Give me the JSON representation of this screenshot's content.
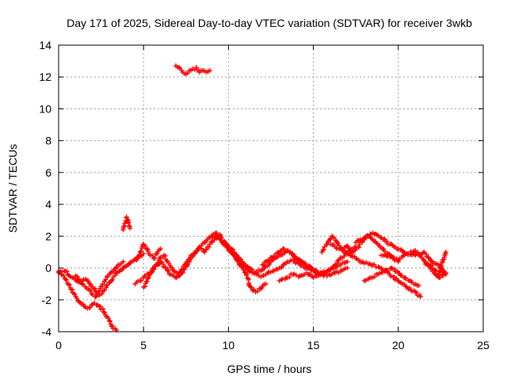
{
  "chart_data": {
    "type": "scatter",
    "title": "Day 171 of 2025, Sidereal Day-to-day VTEC variation (SDTVAR) for receiver 3wkb",
    "xlabel": "GPS time / hours",
    "ylabel": "SDTVAR / TECUs",
    "xlim": [
      0,
      25
    ],
    "ylim": [
      -4,
      14
    ],
    "xticks": [
      0,
      5,
      10,
      15,
      20,
      25
    ],
    "yticks": [
      -4,
      -2,
      0,
      2,
      4,
      6,
      8,
      10,
      12,
      14
    ],
    "grid": true,
    "marker": "+",
    "series": [
      {
        "name": "SDTVAR",
        "color": "#ff0000",
        "segments": [
          {
            "x": [
              0.0,
              0.3,
              0.6,
              0.9,
              1.2,
              1.5,
              1.8,
              2.1,
              2.4,
              2.7,
              3.0,
              3.2,
              3.4
            ],
            "y": [
              -0.2,
              -0.5,
              -1.0,
              -1.6,
              -2.1,
              -2.4,
              -2.5,
              -2.2,
              -2.4,
              -2.8,
              -3.3,
              -3.8,
              -3.9
            ]
          },
          {
            "x": [
              0.0,
              0.4,
              0.8,
              1.2,
              1.6,
              2.0,
              2.3,
              2.6,
              2.9,
              3.2,
              3.5,
              3.8
            ],
            "y": [
              -0.3,
              -0.2,
              -0.6,
              -0.9,
              -0.7,
              -1.2,
              -1.6,
              -1.0,
              -0.5,
              -0.2,
              0.2,
              0.4
            ]
          },
          {
            "x": [
              1.0,
              1.4,
              1.8,
              2.2,
              2.6,
              3.0,
              3.4,
              3.8,
              4.2,
              4.6,
              5.0
            ],
            "y": [
              -0.5,
              -1.0,
              -1.4,
              -1.8,
              -1.5,
              -0.9,
              -0.3,
              0.0,
              0.3,
              0.6,
              0.9
            ]
          },
          {
            "x": [
              3.8,
              3.9,
              4.0,
              4.1,
              4.2
            ],
            "y": [
              2.4,
              2.8,
              3.2,
              2.9,
              2.5
            ]
          },
          {
            "x": [
              4.5,
              4.8,
              5.1,
              5.4,
              5.7,
              6.0,
              6.3,
              6.6,
              6.9,
              7.2,
              7.5,
              7.8,
              8.1,
              8.4,
              8.7,
              9.0,
              9.3,
              9.6,
              9.9
            ],
            "y": [
              -1.0,
              -0.8,
              -0.5,
              -0.3,
              0.1,
              0.4,
              0.0,
              -0.4,
              -0.6,
              -0.2,
              0.3,
              0.8,
              1.1,
              1.4,
              1.7,
              2.0,
              2.2,
              1.9,
              1.5
            ]
          },
          {
            "x": [
              5.0,
              5.3,
              5.6,
              5.9,
              6.2,
              6.5,
              6.8,
              7.1,
              7.4,
              7.7,
              8.0,
              8.3,
              8.6,
              8.9,
              9.2,
              9.5
            ],
            "y": [
              -1.2,
              -0.6,
              0.0,
              0.5,
              0.8,
              0.3,
              -0.2,
              -0.5,
              -0.1,
              0.4,
              0.9,
              1.3,
              1.0,
              1.5,
              1.9,
              2.1
            ]
          },
          {
            "x": [
              4.6,
              4.8,
              5.0,
              5.2,
              5.4,
              5.6,
              5.8,
              6.0
            ],
            "y": [
              0.5,
              1.0,
              1.5,
              1.2,
              0.8,
              0.6,
              0.9,
              1.2
            ]
          },
          {
            "x": [
              6.9,
              7.1,
              7.3,
              7.5,
              7.7,
              7.9,
              8.1,
              8.3,
              8.5,
              8.7,
              8.9
            ],
            "y": [
              12.7,
              12.6,
              12.3,
              12.2,
              12.4,
              12.5,
              12.6,
              12.3,
              12.4,
              12.3,
              12.4
            ]
          },
          {
            "x": [
              9.0,
              9.4,
              9.8,
              10.2,
              10.6,
              11.0,
              11.4,
              11.8,
              12.2,
              12.6,
              13.0,
              13.4,
              13.8,
              14.2,
              14.6,
              15.0,
              15.4,
              15.8,
              16.2,
              16.6,
              17.0
            ],
            "y": [
              2.0,
              1.9,
              1.5,
              1.0,
              0.5,
              0.0,
              -0.3,
              -0.5,
              -0.4,
              -0.2,
              0.0,
              0.3,
              0.5,
              0.2,
              0.0,
              -0.1,
              -0.3,
              -0.2,
              0.0,
              0.2,
              0.4
            ]
          },
          {
            "x": [
              9.5,
              10.0,
              10.5,
              11.0,
              11.3,
              11.6,
              11.9,
              12.2
            ],
            "y": [
              1.8,
              1.2,
              0.5,
              -0.3,
              -1.2,
              -1.5,
              -1.3,
              -1.0
            ]
          },
          {
            "x": [
              10.0,
              10.5,
              11.0,
              11.5,
              12.0,
              12.5,
              13.0,
              13.5,
              14.0,
              14.5,
              15.0,
              15.5,
              16.0,
              16.5,
              17.0,
              17.5
            ],
            "y": [
              1.4,
              0.8,
              0.2,
              -0.3,
              -0.1,
              0.4,
              0.8,
              1.1,
              0.6,
              0.2,
              -0.2,
              -0.4,
              -0.1,
              0.5,
              1.0,
              1.3
            ]
          },
          {
            "x": [
              12.0,
              12.4,
              12.8,
              13.2,
              13.6,
              14.0,
              14.4,
              14.8,
              15.2,
              15.6
            ],
            "y": [
              0.2,
              0.5,
              0.9,
              1.2,
              1.0,
              0.6,
              0.3,
              0.1,
              -0.3,
              -0.5
            ]
          },
          {
            "x": [
              13.0,
              13.4,
              13.8,
              14.2,
              14.6,
              15.0,
              15.4,
              15.8,
              16.2,
              16.6,
              17.0
            ],
            "y": [
              -0.8,
              -0.6,
              -0.4,
              -0.5,
              -0.3,
              -0.6,
              -0.4,
              -0.5,
              -0.3,
              -0.2,
              0.0
            ]
          },
          {
            "x": [
              15.5,
              15.8,
              16.1,
              16.4,
              16.7,
              17.0,
              17.3,
              17.6,
              17.9,
              18.2,
              18.5,
              18.8,
              19.1,
              19.4,
              19.7,
              20.0
            ],
            "y": [
              1.0,
              1.5,
              2.0,
              1.6,
              1.2,
              1.4,
              1.0,
              1.3,
              1.7,
              2.0,
              1.8,
              1.5,
              1.2,
              0.9,
              0.6,
              0.4
            ]
          },
          {
            "x": [
              16.0,
              16.5,
              17.0,
              17.5,
              18.0,
              18.5,
              19.0,
              19.5,
              20.0,
              20.5,
              21.0,
              21.3
            ],
            "y": [
              1.5,
              1.2,
              0.9,
              0.6,
              0.3,
              0.2,
              0.0,
              -0.4,
              -0.8,
              -1.2,
              -1.5,
              -1.8
            ]
          },
          {
            "x": [
              18.0,
              18.4,
              18.8,
              19.2,
              19.6,
              20.0,
              20.4,
              20.8,
              21.2
            ],
            "y": [
              -0.8,
              -0.6,
              -0.4,
              -0.2,
              0.0,
              -0.3,
              -0.6,
              -0.9,
              -1.1
            ]
          },
          {
            "x": [
              17.5,
              18.0,
              18.5,
              19.0,
              19.5,
              20.0,
              20.5,
              21.0,
              21.5,
              22.0,
              22.5,
              22.8
            ],
            "y": [
              1.6,
              1.9,
              2.2,
              1.9,
              1.5,
              1.2,
              0.9,
              0.8,
              1.0,
              0.4,
              0.0,
              -0.4
            ]
          },
          {
            "x": [
              19.0,
              19.5,
              20.0,
              20.5,
              21.0,
              21.5,
              22.0,
              22.4,
              22.8
            ],
            "y": [
              0.8,
              0.7,
              0.5,
              0.9,
              1.1,
              0.5,
              -0.2,
              -0.6,
              -0.3
            ]
          },
          {
            "x": [
              21.5,
              21.8,
              22.1,
              22.4,
              22.6,
              22.8
            ],
            "y": [
              0.5,
              0.2,
              -0.1,
              -0.4,
              0.4,
              1.0
            ]
          }
        ]
      }
    ]
  }
}
